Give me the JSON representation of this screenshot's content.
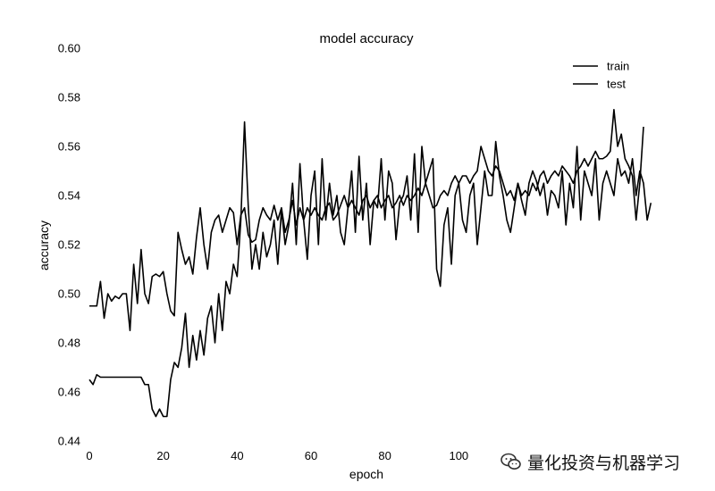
{
  "chart_data": {
    "type": "line",
    "title": "model accuracy",
    "xlabel": "epoch",
    "ylabel": "accuracy",
    "xlim": [
      0,
      150
    ],
    "ylim": [
      0.44,
      0.6
    ],
    "xticks": [
      0,
      20,
      40,
      60,
      80,
      100
    ],
    "xtick_labels": [
      "0",
      "20",
      "40",
      "60",
      "80",
      "100"
    ],
    "yticks": [
      0.44,
      0.46,
      0.48,
      0.5,
      0.52,
      0.54,
      0.56,
      0.58,
      0.6
    ],
    "ytick_labels": [
      "0.44",
      "0.46",
      "0.48",
      "0.50",
      "0.52",
      "0.54",
      "0.56",
      "0.58",
      "0.60"
    ],
    "grid": false,
    "legend": "top-right",
    "line_color": "#000000",
    "series": [
      {
        "name": "train",
        "values": [
          0.495,
          0.495,
          0.495,
          0.505,
          0.49,
          0.5,
          0.497,
          0.499,
          0.498,
          0.5,
          0.5,
          0.485,
          0.512,
          0.496,
          0.518,
          0.5,
          0.496,
          0.507,
          0.508,
          0.507,
          0.509,
          0.5,
          0.493,
          0.491,
          0.525,
          0.518,
          0.512,
          0.515,
          0.508,
          0.523,
          0.535,
          0.52,
          0.51,
          0.525,
          0.53,
          0.532,
          0.525,
          0.53,
          0.535,
          0.533,
          0.52,
          0.532,
          0.535,
          0.524,
          0.521,
          0.522,
          0.53,
          0.535,
          0.532,
          0.53,
          0.536,
          0.53,
          0.535,
          0.525,
          0.53,
          0.538,
          0.528,
          0.535,
          0.53,
          0.535,
          0.532,
          0.535,
          0.532,
          0.53,
          0.535,
          0.537,
          0.53,
          0.532,
          0.536,
          0.54,
          0.535,
          0.538,
          0.535,
          0.532,
          0.538,
          0.54,
          0.535,
          0.538,
          0.54,
          0.535,
          0.538,
          0.54,
          0.535,
          0.537,
          0.54,
          0.536,
          0.54,
          0.538,
          0.54,
          0.543,
          0.54,
          0.545,
          0.54,
          0.535,
          0.536,
          0.54,
          0.542,
          0.54,
          0.545,
          0.548,
          0.545,
          0.548,
          0.548,
          0.545,
          0.548,
          0.55,
          0.56,
          0.555,
          0.55,
          0.548,
          0.552,
          0.55,
          0.545,
          0.54,
          0.542,
          0.538,
          0.545,
          0.54,
          0.542,
          0.54,
          0.545,
          0.542,
          0.548,
          0.55,
          0.545,
          0.548,
          0.55,
          0.548,
          0.552,
          0.55,
          0.548,
          0.545,
          0.55,
          0.552,
          0.555,
          0.552,
          0.555,
          0.558,
          0.555,
          0.555,
          0.556,
          0.558,
          0.575,
          0.56,
          0.565,
          0.555,
          0.552,
          0.548,
          0.53,
          0.545,
          0.568
        ]
      },
      {
        "name": "test",
        "values": [
          0.465,
          0.463,
          0.467,
          0.466,
          0.466,
          0.466,
          0.466,
          0.466,
          0.466,
          0.466,
          0.466,
          0.466,
          0.466,
          0.466,
          0.466,
          0.463,
          0.463,
          0.453,
          0.45,
          0.453,
          0.45,
          0.45,
          0.465,
          0.472,
          0.47,
          0.478,
          0.492,
          0.47,
          0.483,
          0.473,
          0.485,
          0.475,
          0.49,
          0.495,
          0.48,
          0.5,
          0.485,
          0.505,
          0.5,
          0.512,
          0.507,
          0.53,
          0.57,
          0.536,
          0.51,
          0.52,
          0.51,
          0.525,
          0.515,
          0.52,
          0.53,
          0.512,
          0.534,
          0.52,
          0.528,
          0.545,
          0.52,
          0.553,
          0.53,
          0.514,
          0.54,
          0.55,
          0.52,
          0.555,
          0.53,
          0.545,
          0.532,
          0.54,
          0.525,
          0.52,
          0.535,
          0.55,
          0.525,
          0.556,
          0.53,
          0.545,
          0.52,
          0.538,
          0.535,
          0.555,
          0.53,
          0.55,
          0.545,
          0.522,
          0.537,
          0.54,
          0.548,
          0.53,
          0.557,
          0.525,
          0.56,
          0.545,
          0.55,
          0.555,
          0.51,
          0.503,
          0.528,
          0.535,
          0.512,
          0.54,
          0.545,
          0.53,
          0.525,
          0.54,
          0.545,
          0.52,
          0.535,
          0.55,
          0.54,
          0.54,
          0.562,
          0.548,
          0.54,
          0.53,
          0.525,
          0.535,
          0.545,
          0.538,
          0.532,
          0.545,
          0.55,
          0.546,
          0.54,
          0.545,
          0.532,
          0.542,
          0.54,
          0.535,
          0.55,
          0.528,
          0.545,
          0.535,
          0.56,
          0.53,
          0.55,
          0.545,
          0.54,
          0.555,
          0.53,
          0.545,
          0.55,
          0.545,
          0.54,
          0.555,
          0.548,
          0.55,
          0.545,
          0.555,
          0.54,
          0.55,
          0.545,
          0.53,
          0.537
        ]
      }
    ]
  },
  "watermark": {
    "text": "量化投资与机器学习",
    "icon": "wechat-icon"
  }
}
